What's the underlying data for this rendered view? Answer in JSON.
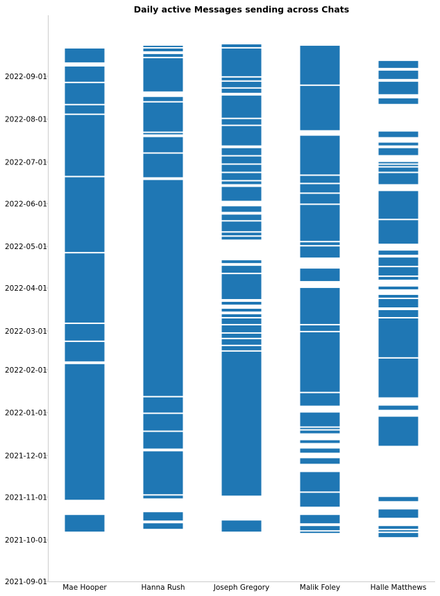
{
  "chart_data": {
    "type": "bar",
    "title": "Daily active Messages sending across Chats",
    "xlabel": "",
    "ylabel": "",
    "grid": false,
    "y_axis": "date",
    "y_inverted": true,
    "ylim": [
      "2021-09-01",
      "2022-09-27"
    ],
    "y_ticks": [
      "2021-09-01",
      "2021-10-01",
      "2021-11-01",
      "2021-12-01",
      "2022-01-01",
      "2022-02-01",
      "2022-03-01",
      "2022-04-01",
      "2022-05-01",
      "2022-06-01",
      "2022-07-01",
      "2022-08-01",
      "2022-09-01"
    ],
    "categories": [
      "Mae Hooper",
      "Hanna Rush",
      "Joseph Gregory",
      "Malik Foley",
      "Halle Matthews"
    ],
    "color": "#1f77b4",
    "description": "Each column is a chat participant; filled spans mark date ranges on which that person was actively sending messages.",
    "series": [
      {
        "name": "Mae Hooper",
        "active_ranges": [
          [
            "2021-10-07",
            "2021-10-19"
          ],
          [
            "2021-10-30",
            "2022-02-05"
          ],
          [
            "2022-02-07",
            "2022-02-21"
          ],
          [
            "2022-02-22",
            "2022-03-06"
          ],
          [
            "2022-03-07",
            "2022-04-26"
          ],
          [
            "2022-04-27",
            "2022-06-20"
          ],
          [
            "2022-06-21",
            "2022-08-04"
          ],
          [
            "2022-08-05",
            "2022-08-11"
          ],
          [
            "2022-08-12",
            "2022-08-27"
          ],
          [
            "2022-08-28",
            "2022-09-08"
          ],
          [
            "2022-09-11",
            "2022-09-21"
          ]
        ]
      },
      {
        "name": "Hanna Rush",
        "active_ranges": [
          [
            "2021-10-09",
            "2021-10-13"
          ],
          [
            "2021-10-15",
            "2021-10-21"
          ],
          [
            "2021-10-31",
            "2021-11-02"
          ],
          [
            "2021-11-03",
            "2021-12-04"
          ],
          [
            "2021-12-06",
            "2021-12-18"
          ],
          [
            "2021-12-19",
            "2021-12-31"
          ],
          [
            "2022-01-01",
            "2022-01-12"
          ],
          [
            "2022-01-13",
            "2022-06-18"
          ],
          [
            "2022-06-20",
            "2022-07-07"
          ],
          [
            "2022-07-08",
            "2022-07-19"
          ],
          [
            "2022-07-21",
            "2022-07-22"
          ],
          [
            "2022-07-23",
            "2022-08-13"
          ],
          [
            "2022-08-14",
            "2022-08-17"
          ],
          [
            "2022-08-21",
            "2022-09-14"
          ],
          [
            "2022-09-15",
            "2022-09-17"
          ],
          [
            "2022-09-19",
            "2022-09-21"
          ],
          [
            "2022-09-22",
            "2022-09-23"
          ]
        ]
      },
      {
        "name": "Joseph Gregory",
        "active_ranges": [
          [
            "2021-10-07",
            "2021-10-15"
          ],
          [
            "2021-11-02",
            "2022-02-14"
          ],
          [
            "2022-02-15",
            "2022-02-18"
          ],
          [
            "2022-02-19",
            "2022-02-23"
          ],
          [
            "2022-02-24",
            "2022-02-27"
          ],
          [
            "2022-02-28",
            "2022-03-05"
          ],
          [
            "2022-03-06",
            "2022-03-10"
          ],
          [
            "2022-03-11",
            "2022-03-13"
          ],
          [
            "2022-03-15",
            "2022-03-17"
          ],
          [
            "2022-03-20",
            "2022-03-22"
          ],
          [
            "2022-03-24",
            "2022-04-11"
          ],
          [
            "2022-04-12",
            "2022-04-17"
          ],
          [
            "2022-04-19",
            "2022-04-21"
          ],
          [
            "2022-05-06",
            "2022-05-08"
          ],
          [
            "2022-05-09",
            "2022-05-11"
          ],
          [
            "2022-05-12",
            "2022-05-19"
          ],
          [
            "2022-05-20",
            "2022-05-24"
          ],
          [
            "2022-05-26",
            "2022-05-30"
          ],
          [
            "2022-06-03",
            "2022-06-13"
          ],
          [
            "2022-06-15",
            "2022-06-17"
          ],
          [
            "2022-06-18",
            "2022-06-23"
          ],
          [
            "2022-06-24",
            "2022-06-29"
          ],
          [
            "2022-06-30",
            "2022-07-05"
          ],
          [
            "2022-07-06",
            "2022-07-11"
          ],
          [
            "2022-07-13",
            "2022-07-27"
          ],
          [
            "2022-07-28",
            "2022-08-01"
          ],
          [
            "2022-08-02",
            "2022-08-18"
          ],
          [
            "2022-08-20",
            "2022-08-23"
          ],
          [
            "2022-08-24",
            "2022-08-28"
          ],
          [
            "2022-08-29",
            "2022-08-31"
          ],
          [
            "2022-09-01",
            "2022-09-21"
          ],
          [
            "2022-09-22",
            "2022-09-24"
          ]
        ]
      },
      {
        "name": "Malik Foley",
        "active_ranges": [
          [
            "2021-10-06",
            "2021-10-07"
          ],
          [
            "2021-10-08",
            "2021-10-11"
          ],
          [
            "2021-10-13",
            "2021-10-19"
          ],
          [
            "2021-10-25",
            "2021-11-04"
          ],
          [
            "2021-11-05",
            "2021-11-19"
          ],
          [
            "2021-11-25",
            "2021-11-29"
          ],
          [
            "2021-12-03",
            "2021-12-06"
          ],
          [
            "2021-12-10",
            "2021-12-12"
          ],
          [
            "2021-12-17",
            "2021-12-19"
          ],
          [
            "2021-12-20",
            "2021-12-21"
          ],
          [
            "2021-12-22",
            "2022-01-01"
          ],
          [
            "2022-01-06",
            "2022-01-15"
          ],
          [
            "2022-01-16",
            "2022-02-28"
          ],
          [
            "2022-03-01",
            "2022-03-05"
          ],
          [
            "2022-03-06",
            "2022-04-01"
          ],
          [
            "2022-04-06",
            "2022-04-15"
          ],
          [
            "2022-04-23",
            "2022-05-01"
          ],
          [
            "2022-05-02",
            "2022-05-04"
          ],
          [
            "2022-05-05",
            "2022-05-31"
          ],
          [
            "2022-06-01",
            "2022-06-08"
          ],
          [
            "2022-06-09",
            "2022-06-15"
          ],
          [
            "2022-06-16",
            "2022-06-21"
          ],
          [
            "2022-06-22",
            "2022-07-20"
          ],
          [
            "2022-07-24",
            "2022-08-25"
          ],
          [
            "2022-08-26",
            "2022-09-23"
          ]
        ]
      },
      {
        "name": "Halle Matthews",
        "active_ranges": [
          [
            "2021-10-03",
            "2021-10-06"
          ],
          [
            "2021-10-07",
            "2021-10-08"
          ],
          [
            "2021-10-09",
            "2021-10-11"
          ],
          [
            "2021-10-17",
            "2021-10-23"
          ],
          [
            "2021-10-29",
            "2021-11-01"
          ],
          [
            "2021-12-08",
            "2021-12-29"
          ],
          [
            "2022-01-03",
            "2022-01-06"
          ],
          [
            "2022-01-12",
            "2022-02-09"
          ],
          [
            "2022-02-10",
            "2022-03-10"
          ],
          [
            "2022-03-11",
            "2022-03-16"
          ],
          [
            "2022-03-18",
            "2022-03-24"
          ],
          [
            "2022-03-25",
            "2022-03-27"
          ],
          [
            "2022-03-31",
            "2022-04-02"
          ],
          [
            "2022-04-07",
            "2022-04-09"
          ],
          [
            "2022-04-10",
            "2022-04-16"
          ],
          [
            "2022-04-17",
            "2022-04-23"
          ],
          [
            "2022-04-25",
            "2022-04-28"
          ],
          [
            "2022-05-03",
            "2022-05-20"
          ],
          [
            "2022-05-21",
            "2022-06-10"
          ],
          [
            "2022-06-15",
            "2022-06-23"
          ],
          [
            "2022-06-24",
            "2022-06-27"
          ],
          [
            "2022-06-28",
            "2022-06-29"
          ],
          [
            "2022-06-30",
            "2022-07-01"
          ],
          [
            "2022-07-06",
            "2022-07-11"
          ],
          [
            "2022-07-13",
            "2022-07-15"
          ],
          [
            "2022-07-19",
            "2022-07-23"
          ],
          [
            "2022-08-12",
            "2022-08-16"
          ],
          [
            "2022-08-19",
            "2022-08-28"
          ],
          [
            "2022-08-30",
            "2022-09-05"
          ],
          [
            "2022-09-07",
            "2022-09-12"
          ]
        ]
      }
    ]
  }
}
